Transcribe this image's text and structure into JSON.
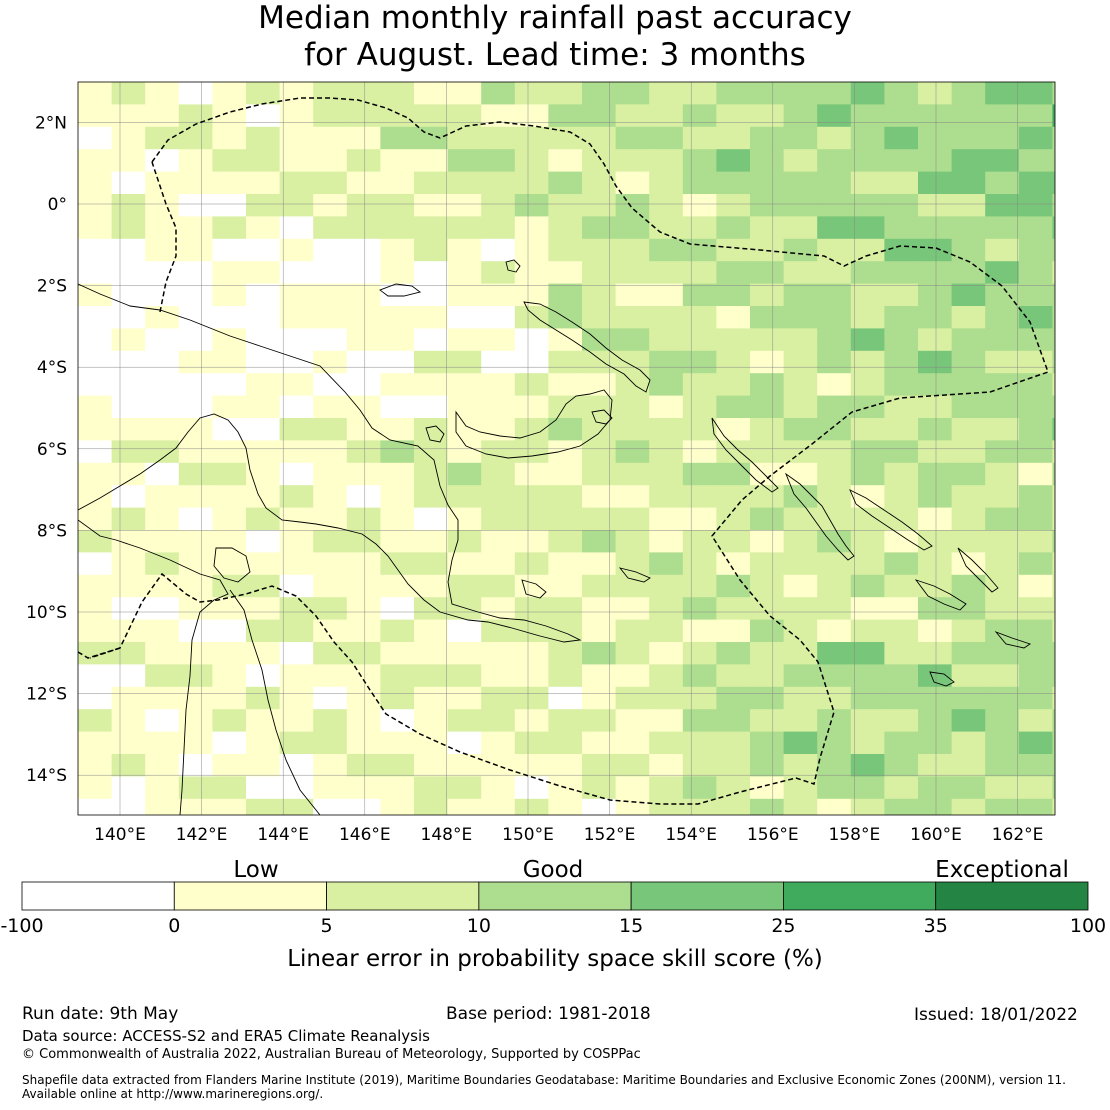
{
  "title_line1": "Median monthly rainfall past accuracy",
  "title_line2": "for August. Lead time: 3 months",
  "lon_ticks": [
    "140°E",
    "142°E",
    "144°E",
    "146°E",
    "148°E",
    "150°E",
    "152°E",
    "154°E",
    "156°E",
    "158°E",
    "160°E",
    "162°E"
  ],
  "lat_ticks": [
    "2°N",
    "0°",
    "2°S",
    "4°S",
    "6°S",
    "8°S",
    "10°S",
    "12°S",
    "14°S"
  ],
  "colorbar": {
    "category_labels": [
      "Low",
      "Good",
      "Exceptional"
    ],
    "tick_labels": [
      "-100",
      "0",
      "5",
      "10",
      "15",
      "25",
      "35",
      "100"
    ],
    "colors": [
      "#ffffff",
      "#ffffcc",
      "#d9f0a3",
      "#addd8e",
      "#78c679",
      "#41ab5d",
      "#238443"
    ],
    "label": "Linear error in probability space skill score (%)"
  },
  "footer": {
    "run_date": "Run date: 9th May",
    "base_period": "Base period: 1981-2018",
    "issued": "Issued: 18/01/2022",
    "data_source": "Data source: ACCESS-S2 and ERA5 Climate Reanalysis",
    "copyright": "© Commonwealth of Australia 2022, Australian Bureau of Meteorology, Supported by COSPPac",
    "shapefile_line1": "Shapefile data extracted from Flanders Marine Institute (2019), Maritime Boundaries Geodatabase: Maritime Boundaries and Exclusive Economic Zones (200NM), version 11.",
    "shapefile_line2": "Available online at http://www.marineregions.org/."
  }
}
